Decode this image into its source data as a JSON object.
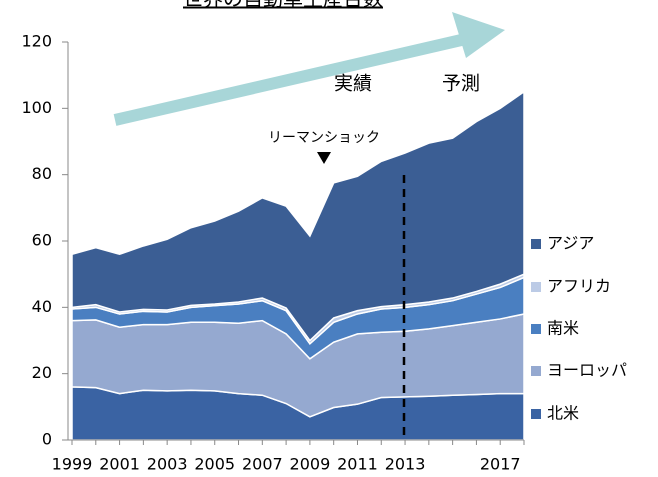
{
  "chart_data": {
    "type": "stacked_area",
    "title": "世界の自動車生産台数",
    "categories": [
      "1999",
      null,
      "2001",
      null,
      "2003",
      null,
      "2005",
      null,
      "2007",
      null,
      "2009",
      null,
      "2011",
      null,
      "2013",
      null,
      null,
      null,
      "2017",
      null
    ],
    "series": [
      {
        "name": "北米",
        "color": "#3a63a3",
        "values": [
          16,
          15.8,
          14,
          15,
          14.8,
          15,
          14.8,
          14,
          13.5,
          11,
          7,
          9.8,
          10.8,
          12.8,
          13,
          13.2,
          13.5,
          13.7,
          14,
          14
        ]
      },
      {
        "name": "ヨーロッパ",
        "color": "#95a9d0",
        "values": [
          20,
          20.4,
          20,
          19.8,
          20,
          20.5,
          20.7,
          21.2,
          22.5,
          21,
          17.5,
          19.7,
          21.2,
          19.7,
          19.8,
          20.3,
          21,
          21.8,
          22.5,
          24
        ]
      },
      {
        "name": "南米",
        "color": "#4a7fc1",
        "values": [
          3.5,
          3.8,
          4,
          4,
          3.8,
          4.5,
          5,
          5.8,
          6,
          7,
          4.5,
          6,
          6,
          7,
          7.2,
          7.3,
          7.5,
          8.5,
          9.5,
          11
        ]
      },
      {
        "name": "アフリカ",
        "color": "#bccbe6",
        "values": [
          0.5,
          0.8,
          0.6,
          0.6,
          0.6,
          0.6,
          0.5,
          0.6,
          0.8,
          0.8,
          1,
          1.3,
          1,
          0.7,
          0.8,
          0.8,
          0.8,
          0.8,
          1,
          1
        ]
      },
      {
        "name": "アジア",
        "color": "#3b5e94",
        "values": [
          16,
          17.2,
          17.4,
          19.1,
          21.3,
          23.4,
          25,
          27.4,
          30.2,
          30.7,
          31.5,
          40.7,
          40.5,
          43.8,
          45.7,
          47.9,
          48.2,
          51.2,
          53,
          55
        ]
      }
    ],
    "ylim": [
      0,
      120
    ],
    "yticks": [
      0,
      20,
      40,
      60,
      80,
      100,
      120
    ],
    "annotations": [
      "実績",
      "予測",
      "リーマンショック"
    ]
  }
}
